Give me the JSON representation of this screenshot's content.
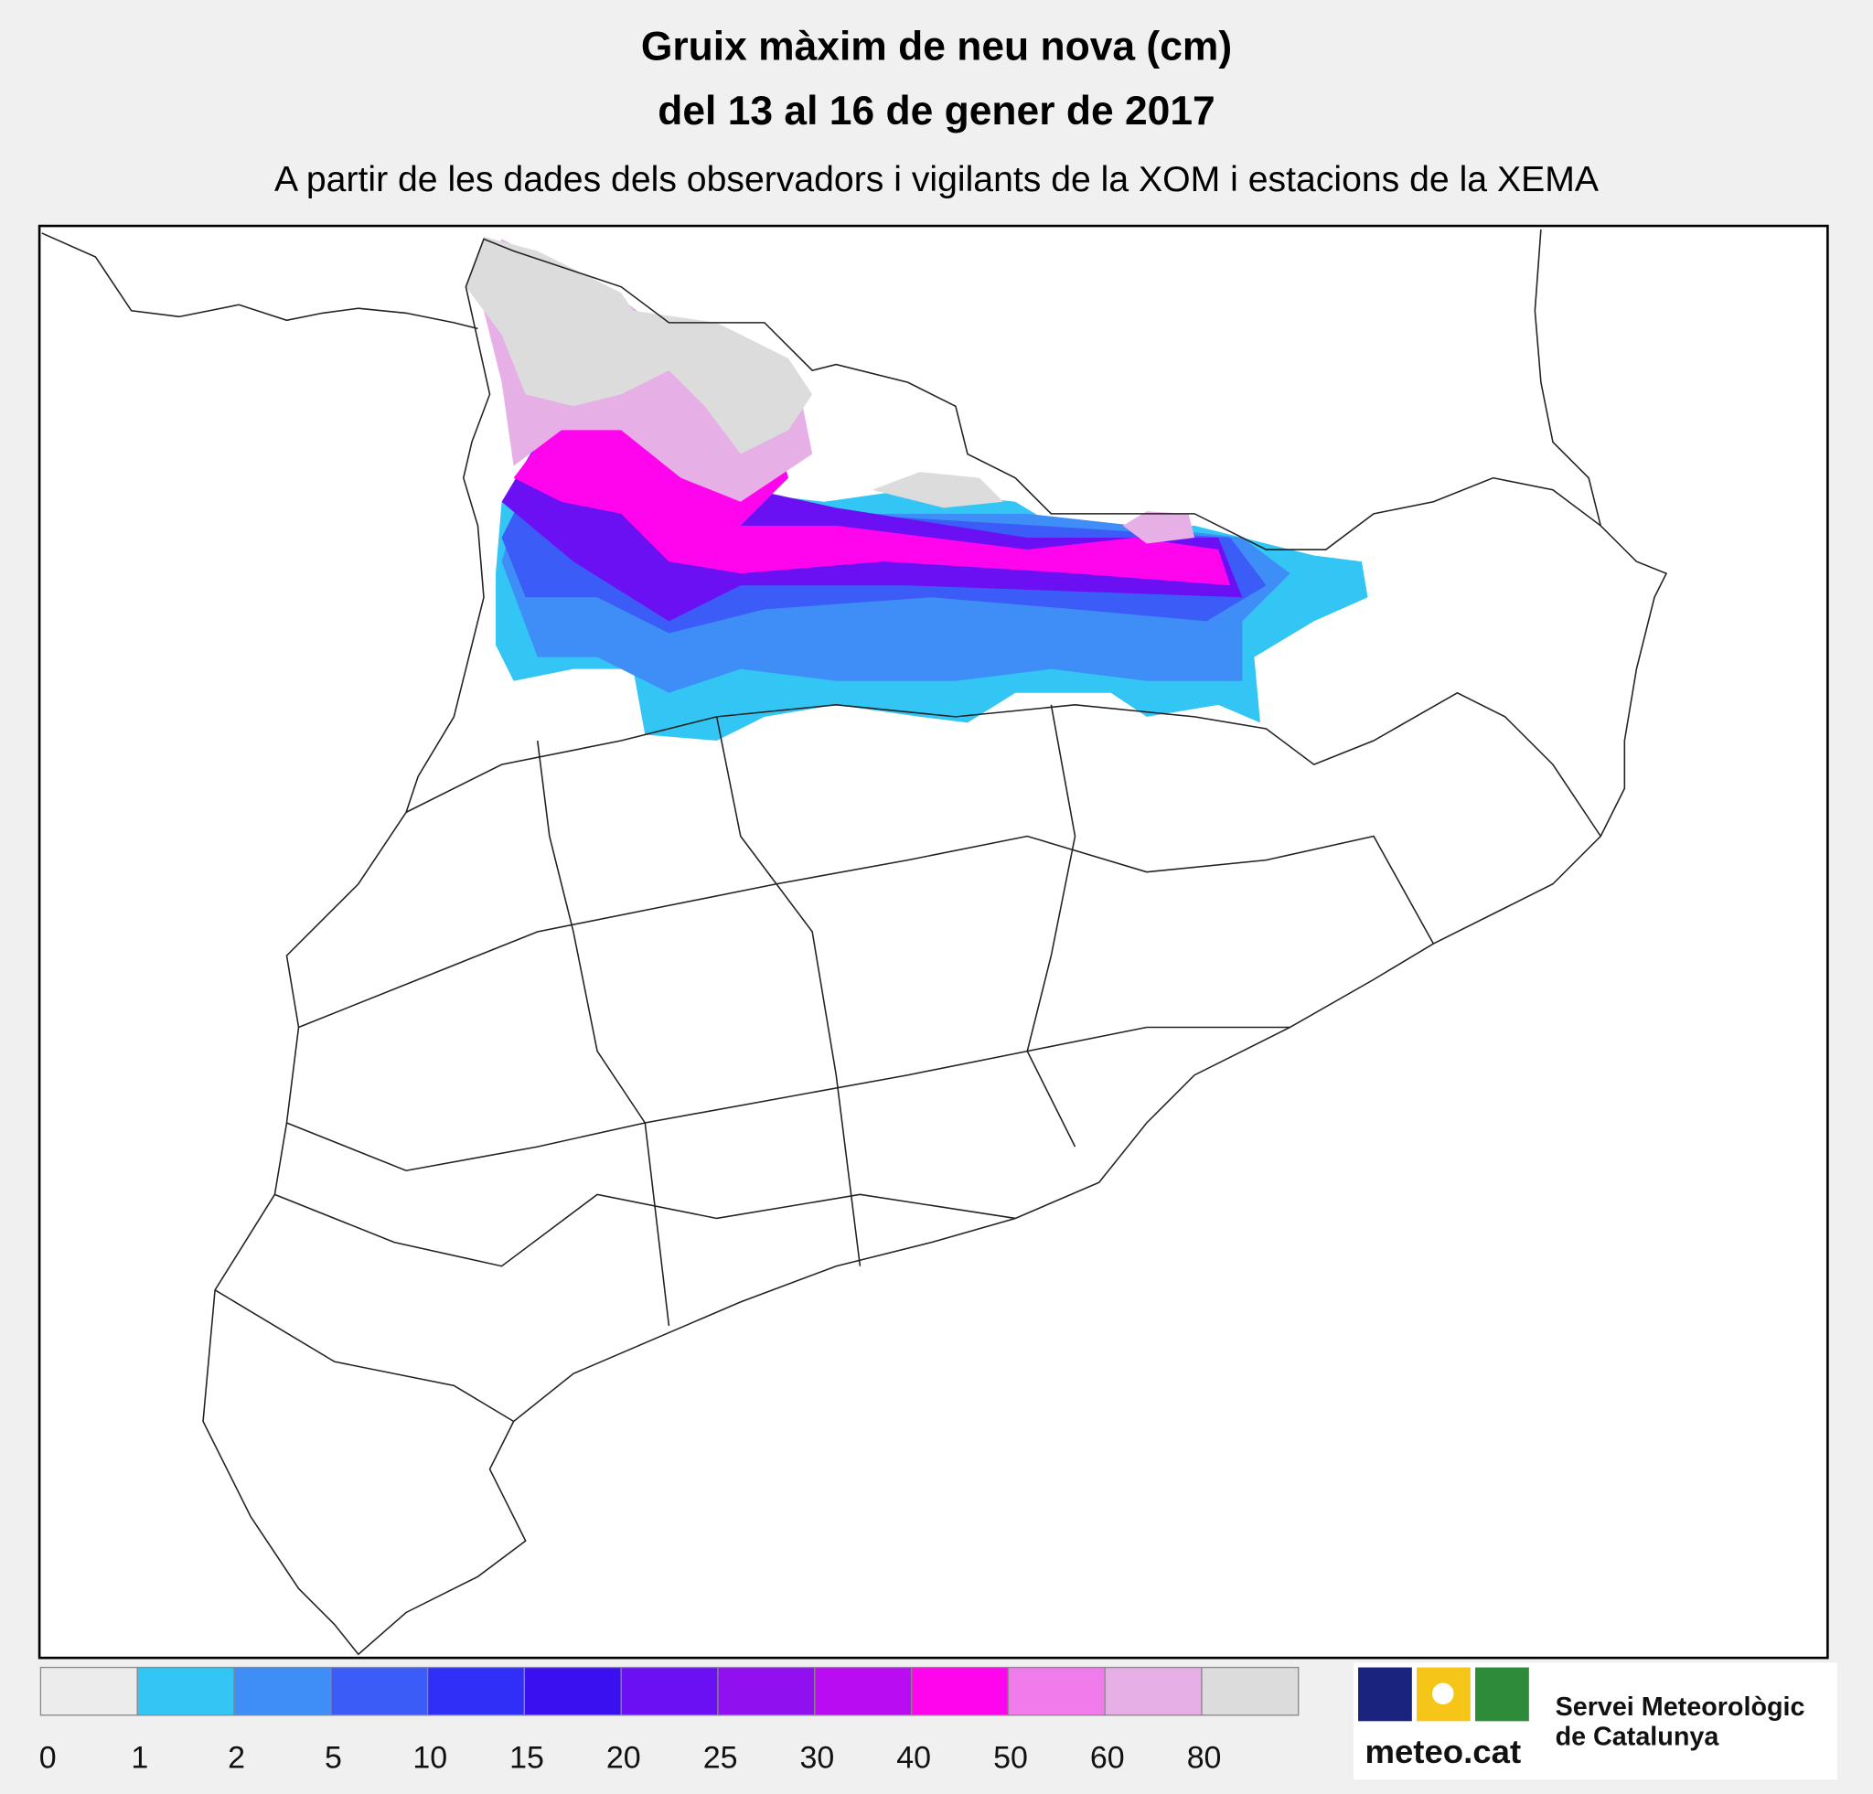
{
  "header": {
    "title_line1": "Gruix màxim de neu nova (cm)",
    "title_line2": "del 13 al 16 de gener de 2017",
    "subtitle": "A partir de les dades dels observadors i vigilants de la XOM i estacions de la XEMA"
  },
  "legend": {
    "ticks": [
      0,
      1,
      2,
      5,
      10,
      15,
      20,
      25,
      30,
      40,
      50,
      60,
      80
    ],
    "colors": [
      "#ececec",
      "#33c6f5",
      "#3f8ef7",
      "#3c5cf8",
      "#2f2ff8",
      "#3b10f0",
      "#6b10f3",
      "#9010f0",
      "#b90cf0",
      "#ff05ee",
      "#f07ceb",
      "#e6b0e6",
      "#dcdcdc"
    ]
  },
  "logo": {
    "brand": "meteo.cat",
    "org_line1": "Servei Meteorològic",
    "org_line2": "de Catalunya"
  }
}
